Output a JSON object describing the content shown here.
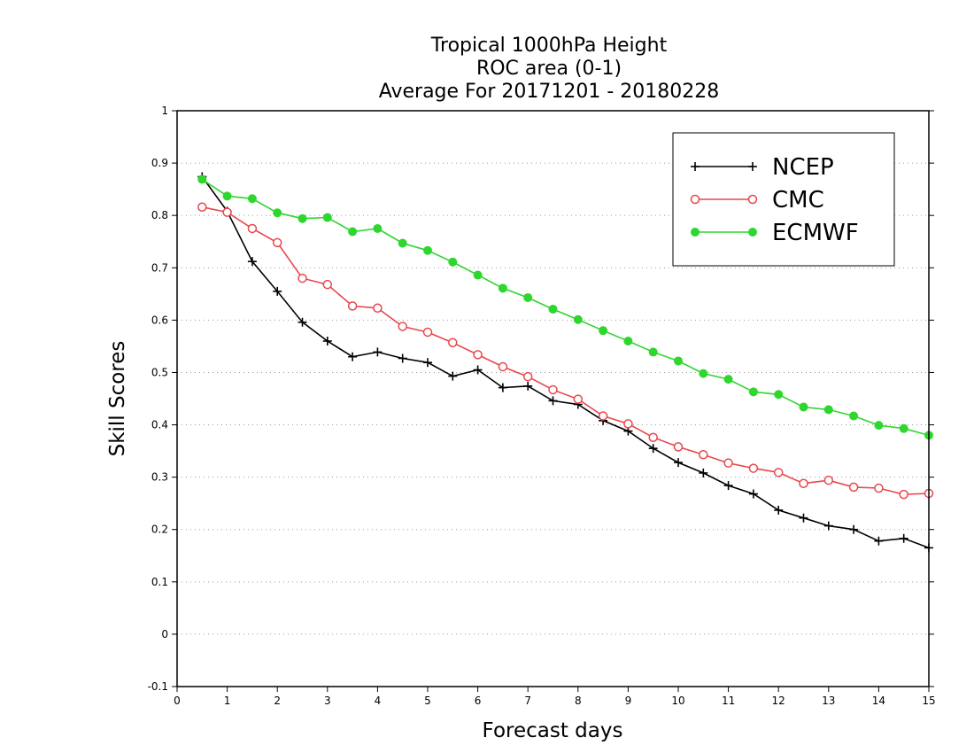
{
  "chart_data": {
    "type": "line",
    "title": [
      "Tropical 1000hPa Height",
      "ROC area (0-1)",
      "Average For 20171201 - 20180228"
    ],
    "xlabel": "Forecast days",
    "ylabel": "Skill Scores",
    "xlim": [
      0,
      15
    ],
    "ylim": [
      -0.1,
      1
    ],
    "xticks": [
      0,
      1,
      2,
      3,
      4,
      5,
      6,
      7,
      8,
      9,
      10,
      11,
      12,
      13,
      14,
      15
    ],
    "xtick_labels": [
      "0",
      "1",
      "2",
      "3",
      "4",
      "5",
      "6",
      "7",
      "8",
      "9",
      "10",
      "11",
      "12",
      "13",
      "14",
      "15"
    ],
    "yticks": [
      -0.1,
      0,
      0.1,
      0.2,
      0.3,
      0.4,
      0.5,
      0.6,
      0.7,
      0.8,
      0.9,
      1
    ],
    "ytick_labels": [
      "-0.1",
      "0",
      "0.1",
      "0.2",
      "0.3",
      "0.4",
      "0.5",
      "0.6",
      "0.7",
      "0.8",
      "0.9",
      "1"
    ],
    "grid": "horizontal dotted",
    "legend_position": "top-right",
    "x": [
      0.5,
      1,
      1.5,
      2,
      2.5,
      3,
      3.5,
      4,
      4.5,
      5,
      5.5,
      6,
      6.5,
      7,
      7.5,
      8,
      8.5,
      9,
      9.5,
      10,
      10.5,
      11,
      11.5,
      12,
      12.5,
      13,
      13.5,
      14,
      14.5,
      15
    ],
    "series": [
      {
        "name": "NCEP",
        "color": "#000000",
        "marker": "plus",
        "values": [
          0.874,
          0.808,
          0.712,
          0.655,
          0.596,
          0.56,
          0.53,
          0.539,
          0.527,
          0.519,
          0.493,
          0.505,
          0.471,
          0.474,
          0.446,
          0.439,
          0.408,
          0.388,
          0.355,
          0.328,
          0.308,
          0.284,
          0.268,
          0.237,
          0.222,
          0.207,
          0.2,
          0.178,
          0.183,
          0.165
        ]
      },
      {
        "name": "CMC",
        "color": "#e8474c",
        "marker": "open-circle",
        "values": [
          0.816,
          0.806,
          0.775,
          0.748,
          0.68,
          0.668,
          0.627,
          0.623,
          0.588,
          0.577,
          0.557,
          0.534,
          0.511,
          0.492,
          0.467,
          0.449,
          0.417,
          0.402,
          0.376,
          0.358,
          0.343,
          0.327,
          0.317,
          0.309,
          0.288,
          0.294,
          0.281,
          0.279,
          0.267,
          0.269
        ]
      },
      {
        "name": "ECMWF",
        "color": "#2fd62f",
        "marker": "filled-circle",
        "values": [
          0.869,
          0.837,
          0.832,
          0.805,
          0.794,
          0.796,
          0.769,
          0.775,
          0.747,
          0.733,
          0.711,
          0.686,
          0.661,
          0.643,
          0.621,
          0.601,
          0.58,
          0.56,
          0.539,
          0.522,
          0.498,
          0.487,
          0.463,
          0.458,
          0.434,
          0.429,
          0.417,
          0.399,
          0.393,
          0.38
        ]
      }
    ]
  }
}
